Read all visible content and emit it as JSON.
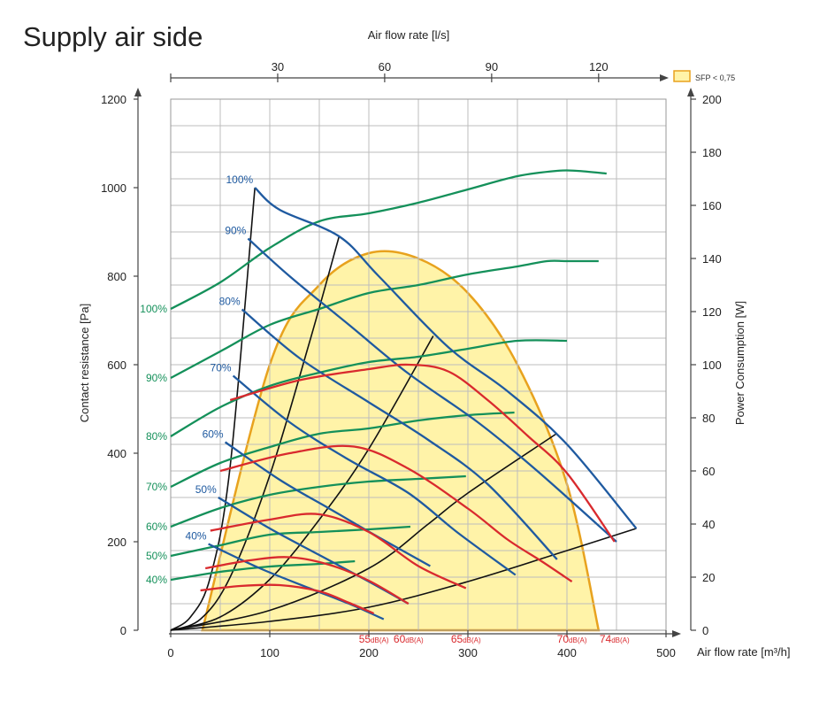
{
  "page": {
    "title": "Supply air side"
  },
  "chart_data": {
    "type": "line",
    "title": "Supply air side",
    "x_axis": {
      "label": "Air flow rate [m³/h]",
      "range": [
        0,
        500
      ],
      "ticks": [
        0,
        100,
        200,
        300,
        400,
        500
      ]
    },
    "x2_axis": {
      "label": "Air flow rate [l/s]",
      "range": [
        0,
        138.9
      ],
      "ticks": [
        30,
        60,
        90,
        120
      ]
    },
    "y_axis": {
      "label": "Contact resistance [Pa]",
      "range": [
        0,
        1200
      ],
      "ticks": [
        0,
        200,
        400,
        600,
        800,
        1000,
        1200
      ]
    },
    "y2_axis": {
      "label": "Power Consumption [W]",
      "range": [
        0,
        200
      ],
      "ticks": [
        0,
        20,
        40,
        60,
        80,
        100,
        120,
        140,
        160,
        180,
        200
      ]
    },
    "grid": true,
    "legend": {
      "position": "top-right",
      "entries": [
        {
          "label": "SFP < 0,75",
          "color": "#fff3a8",
          "stroke": "#e8a21e"
        }
      ]
    },
    "colors": {
      "pressure": "#1f5aa0",
      "power": "#14905a",
      "sound": "#d92a2e",
      "system": "#111111",
      "sfp_fill": "#fff3a8",
      "sfp_stroke": "#e8a21e",
      "grid": "#bdbdbd"
    },
    "pressure_curves": [
      {
        "name": "100%",
        "points": [
          [
            85,
            1000
          ],
          [
            110,
            950
          ],
          [
            170,
            890
          ],
          [
            210,
            800
          ],
          [
            280,
            640
          ],
          [
            340,
            540
          ],
          [
            400,
            420
          ],
          [
            470,
            230
          ]
        ]
      },
      {
        "name": "90%",
        "points": [
          [
            78,
            885
          ],
          [
            120,
            800
          ],
          [
            180,
            690
          ],
          [
            240,
            580
          ],
          [
            310,
            470
          ],
          [
            370,
            360
          ],
          [
            450,
            200
          ]
        ]
      },
      {
        "name": "80%",
        "points": [
          [
            72,
            725
          ],
          [
            130,
            615
          ],
          [
            200,
            515
          ],
          [
            260,
            430
          ],
          [
            320,
            330
          ],
          [
            390,
            160
          ]
        ]
      },
      {
        "name": "70%",
        "points": [
          [
            63,
            575
          ],
          [
            120,
            470
          ],
          [
            180,
            385
          ],
          [
            240,
            310
          ],
          [
            290,
            220
          ],
          [
            348,
            125
          ]
        ]
      },
      {
        "name": "60%",
        "points": [
          [
            55,
            425
          ],
          [
            110,
            340
          ],
          [
            160,
            275
          ],
          [
            210,
            210
          ],
          [
            262,
            145
          ]
        ]
      },
      {
        "name": "50%",
        "points": [
          [
            48,
            300
          ],
          [
            100,
            230
          ],
          [
            150,
            170
          ],
          [
            200,
            110
          ],
          [
            240,
            60
          ]
        ]
      },
      {
        "name": "40%",
        "points": [
          [
            38,
            195
          ],
          [
            90,
            140
          ],
          [
            140,
            95
          ],
          [
            180,
            60
          ],
          [
            215,
            25
          ]
        ]
      }
    ],
    "power_curves": [
      {
        "name": "100%",
        "points": [
          [
            0,
            121
          ],
          [
            50,
            131
          ],
          [
            100,
            144
          ],
          [
            150,
            154
          ],
          [
            200,
            157
          ],
          [
            250,
            161
          ],
          [
            300,
            166
          ],
          [
            350,
            171
          ],
          [
            390,
            173
          ],
          [
            410,
            173
          ],
          [
            440,
            172
          ]
        ]
      },
      {
        "name": "90%",
        "points": [
          [
            0,
            95
          ],
          [
            50,
            105
          ],
          [
            100,
            115
          ],
          [
            150,
            121
          ],
          [
            200,
            127
          ],
          [
            250,
            130
          ],
          [
            300,
            134
          ],
          [
            350,
            137
          ],
          [
            380,
            139
          ],
          [
            400,
            139
          ],
          [
            432,
            139
          ]
        ]
      },
      {
        "name": "80%",
        "points": [
          [
            0,
            73
          ],
          [
            50,
            84
          ],
          [
            100,
            92
          ],
          [
            150,
            97
          ],
          [
            200,
            101
          ],
          [
            250,
            103
          ],
          [
            300,
            106
          ],
          [
            350,
            109
          ],
          [
            400,
            109
          ]
        ]
      },
      {
        "name": "70%",
        "points": [
          [
            0,
            54
          ],
          [
            50,
            63
          ],
          [
            100,
            69
          ],
          [
            150,
            74
          ],
          [
            200,
            76
          ],
          [
            250,
            79
          ],
          [
            300,
            81
          ],
          [
            347,
            82
          ]
        ]
      },
      {
        "name": "60%",
        "points": [
          [
            0,
            39
          ],
          [
            50,
            46
          ],
          [
            100,
            51
          ],
          [
            150,
            54
          ],
          [
            200,
            56
          ],
          [
            250,
            57
          ],
          [
            298,
            58
          ]
        ]
      },
      {
        "name": "50%",
        "points": [
          [
            0,
            28
          ],
          [
            50,
            32
          ],
          [
            100,
            36
          ],
          [
            150,
            37
          ],
          [
            200,
            38
          ],
          [
            242,
            39
          ]
        ]
      },
      {
        "name": "40%",
        "points": [
          [
            0,
            19
          ],
          [
            50,
            22
          ],
          [
            100,
            24
          ],
          [
            150,
            25
          ],
          [
            186,
            26
          ]
        ]
      }
    ],
    "sound_curves": [
      {
        "name": "55dB(A)",
        "points": [
          [
            30,
            90
          ],
          [
            70,
            100
          ],
          [
            110,
            102
          ],
          [
            150,
            88
          ],
          [
            180,
            62
          ],
          [
            205,
            38
          ]
        ]
      },
      {
        "name": "60dB(A)",
        "points": [
          [
            35,
            140
          ],
          [
            80,
            158
          ],
          [
            120,
            165
          ],
          [
            160,
            148
          ],
          [
            200,
            112
          ],
          [
            240,
            60
          ]
        ]
      },
      {
        "name": "65dB(A)",
        "points": [
          [
            40,
            225
          ],
          [
            100,
            250
          ],
          [
            150,
            262
          ],
          [
            200,
            222
          ],
          [
            250,
            145
          ],
          [
            298,
            95
          ]
        ]
      },
      {
        "name": "70dB(A)",
        "points": [
          [
            50,
            360
          ],
          [
            120,
            400
          ],
          [
            185,
            415
          ],
          [
            240,
            365
          ],
          [
            300,
            275
          ],
          [
            340,
            205
          ],
          [
            375,
            155
          ],
          [
            405,
            110
          ]
        ]
      },
      {
        "name": "74dB(A)",
        "points": [
          [
            60,
            520
          ],
          [
            130,
            565
          ],
          [
            200,
            590
          ],
          [
            240,
            600
          ],
          [
            280,
            585
          ],
          [
            320,
            520
          ],
          [
            360,
            440
          ],
          [
            400,
            355
          ],
          [
            448,
            200
          ]
        ]
      }
    ],
    "system_curves": [
      {
        "points": [
          [
            0,
            0
          ],
          [
            20,
            30
          ],
          [
            40,
            120
          ],
          [
            60,
            370
          ],
          [
            85,
            1000
          ]
        ]
      },
      {
        "points": [
          [
            0,
            0
          ],
          [
            30,
            25
          ],
          [
            60,
            120
          ],
          [
            100,
            350
          ],
          [
            140,
            650
          ],
          [
            170,
            890
          ]
        ]
      },
      {
        "points": [
          [
            0,
            0
          ],
          [
            50,
            30
          ],
          [
            100,
            115
          ],
          [
            150,
            250
          ],
          [
            200,
            410
          ],
          [
            265,
            665
          ]
        ]
      },
      {
        "points": [
          [
            0,
            0
          ],
          [
            100,
            45
          ],
          [
            200,
            140
          ],
          [
            260,
            240
          ],
          [
            300,
            310
          ],
          [
            390,
            445
          ]
        ]
      },
      {
        "points": [
          [
            0,
            0
          ],
          [
            100,
            20
          ],
          [
            200,
            52
          ],
          [
            300,
            110
          ],
          [
            400,
            180
          ],
          [
            470,
            230
          ]
        ]
      }
    ],
    "sfp_region": [
      [
        32,
        0
      ],
      [
        100,
        100
      ],
      [
        150,
        130
      ],
      [
        200,
        142
      ],
      [
        250,
        140
      ],
      [
        300,
        127
      ],
      [
        350,
        100
      ],
      [
        400,
        55
      ],
      [
        432,
        0
      ]
    ]
  }
}
